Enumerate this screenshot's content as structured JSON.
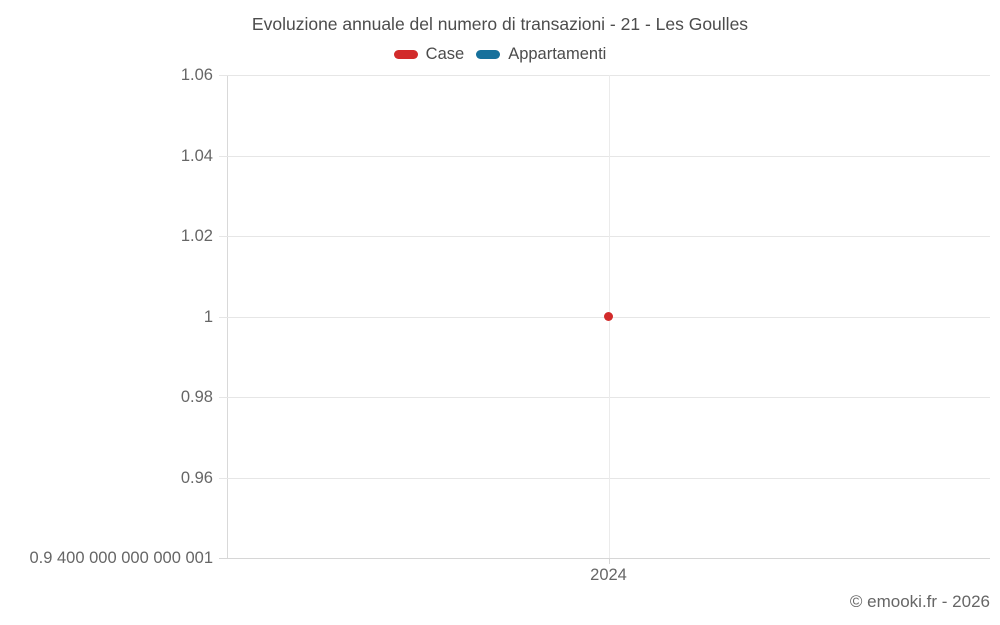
{
  "header": {
    "title": "Evoluzione annuale del numero di transazioni - 21 - Les Goulles"
  },
  "legend": [
    {
      "label": "Case",
      "color": "#d22b2b"
    },
    {
      "label": "Appartamenti",
      "color": "#17719c"
    }
  ],
  "footer": {
    "copyright": "© emooki.fr - 2026"
  },
  "chart_data": {
    "type": "scatter",
    "title": "Evoluzione annuale del numero di transazioni - 21 - Les Goulles",
    "xlabel": "",
    "ylabel": "",
    "grid": true,
    "legend_position": "top",
    "ylim": [
      0.94,
      1.06
    ],
    "x_ticks": [
      {
        "value": 2024,
        "label": "2024"
      }
    ],
    "y_ticks": [
      {
        "value": 1.06,
        "label": "1.06"
      },
      {
        "value": 1.04,
        "label": "1.04"
      },
      {
        "value": 1.02,
        "label": "1.02"
      },
      {
        "value": 1.0,
        "label": "1"
      },
      {
        "value": 0.98,
        "label": "0.98"
      },
      {
        "value": 0.96,
        "label": "0.96"
      },
      {
        "value": 0.94,
        "label": "0.9 400 000 000 000 001"
      }
    ],
    "series": [
      {
        "name": "Case",
        "color": "#d22b2b",
        "points": [
          {
            "x": 2024,
            "y": 1
          }
        ]
      },
      {
        "name": "Appartamenti",
        "color": "#17719c",
        "points": []
      }
    ]
  }
}
